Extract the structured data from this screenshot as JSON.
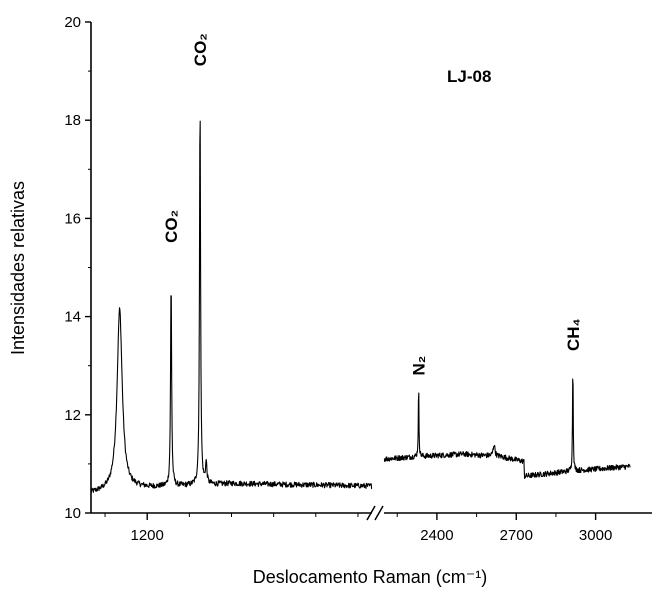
{
  "chart_data": {
    "type": "line",
    "title": "",
    "sample_label": "LJ-08",
    "xlabel": "Deslocamento Raman (cm⁻¹)",
    "ylabel": "Intensidades relativas",
    "ylim": [
      10,
      20
    ],
    "y_ticks": [
      10,
      12,
      14,
      16,
      18,
      20
    ],
    "x_tick_labels": [
      "1200",
      "2400",
      "2700",
      "3000"
    ],
    "x_axis_break": true,
    "segments": [
      {
        "name": "",
        "xlim": [
          1000,
          2000
        ],
        "baseline": [
          [
            1000,
            10.4
          ],
          [
            1150,
            10.5
          ],
          [
            1500,
            10.6
          ],
          [
            2000,
            10.55
          ]
        ],
        "peaks": [
          {
            "x": 1102,
            "y": 14.15,
            "width": 11
          },
          {
            "x": 1285,
            "y": 14.8,
            "width": 2.2
          },
          {
            "x": 1388,
            "y": 18.5,
            "width": 2.2
          },
          {
            "x": 1410,
            "y": 11.0,
            "width": 3
          }
        ]
      },
      {
        "name": "",
        "xlim": [
          2200,
          3130
        ],
        "baseline": [
          [
            2200,
            11.1
          ],
          [
            2330,
            11.15
          ],
          [
            2500,
            11.2
          ],
          [
            2640,
            11.15
          ],
          [
            2729,
            11.05
          ],
          [
            2731,
            10.75
          ],
          [
            2900,
            10.85
          ],
          [
            3130,
            10.95
          ]
        ],
        "peaks": [
          {
            "x": 2331,
            "y": 12.55,
            "width": 1.5
          },
          {
            "x": 2616,
            "y": 11.4,
            "width": 4
          },
          {
            "x": 2914,
            "y": 13.0,
            "width": 1.6
          }
        ]
      }
    ],
    "annotations": [
      {
        "text": "CO₂",
        "x": 1285,
        "y": 15.5
      },
      {
        "text": "CO₂",
        "x": 1388,
        "y": 19.1
      },
      {
        "text": "N₂",
        "x": 2331,
        "y": 12.8
      },
      {
        "text": "CH₄",
        "x": 2914,
        "y": 13.3
      }
    ]
  }
}
